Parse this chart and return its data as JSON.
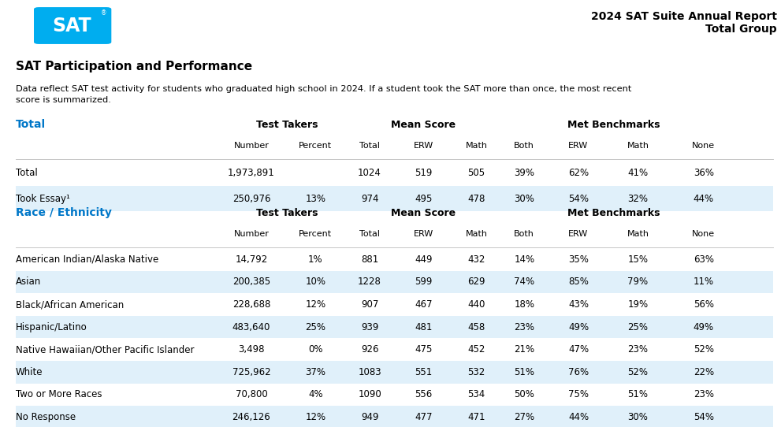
{
  "title_right": "2024 SAT Suite Annual Report\nTotal Group",
  "section_title": "SAT Participation and Performance",
  "description": "Data reflect SAT test activity for students who graduated high school in 2024. If a student took the SAT more than once, the most recent\nscore is summarized.",
  "total_section_label": "Total",
  "race_section_label": "Race / Ethnicity",
  "sub_labels": [
    "Number",
    "Percent",
    "Total",
    "ERW",
    "Math",
    "Both",
    "ERW",
    "Math",
    "None"
  ],
  "sub_keys": [
    "number",
    "percent",
    "total",
    "erw",
    "math",
    "both",
    "met_erw",
    "met_math",
    "none"
  ],
  "total_rows": [
    {
      "label": "Total",
      "number": "1,973,891",
      "percent": "",
      "total": "1024",
      "erw": "519",
      "math": "505",
      "both": "39%",
      "met_erw": "62%",
      "met_math": "41%",
      "none": "36%",
      "shaded": false
    },
    {
      "label": "Took Essay¹",
      "number": "250,976",
      "percent": "13%",
      "total": "974",
      "erw": "495",
      "math": "478",
      "both": "30%",
      "met_erw": "54%",
      "met_math": "32%",
      "none": "44%",
      "shaded": true
    }
  ],
  "race_rows": [
    {
      "label": "American Indian/Alaska Native",
      "number": "14,792",
      "percent": "1%",
      "total": "881",
      "erw": "449",
      "math": "432",
      "both": "14%",
      "met_erw": "35%",
      "met_math": "15%",
      "none": "63%",
      "shaded": false
    },
    {
      "label": "Asian",
      "number": "200,385",
      "percent": "10%",
      "total": "1228",
      "erw": "599",
      "math": "629",
      "both": "74%",
      "met_erw": "85%",
      "met_math": "79%",
      "none": "11%",
      "shaded": true
    },
    {
      "label": "Black/African American",
      "number": "228,688",
      "percent": "12%",
      "total": "907",
      "erw": "467",
      "math": "440",
      "both": "18%",
      "met_erw": "43%",
      "met_math": "19%",
      "none": "56%",
      "shaded": false
    },
    {
      "label": "Hispanic/Latino",
      "number": "483,640",
      "percent": "25%",
      "total": "939",
      "erw": "481",
      "math": "458",
      "both": "23%",
      "met_erw": "49%",
      "met_math": "25%",
      "none": "49%",
      "shaded": true
    },
    {
      "label": "Native Hawaiian/Other Pacific Islander",
      "number": "3,498",
      "percent": "0%",
      "total": "926",
      "erw": "475",
      "math": "452",
      "both": "21%",
      "met_erw": "47%",
      "met_math": "23%",
      "none": "52%",
      "shaded": false
    },
    {
      "label": "White",
      "number": "725,962",
      "percent": "37%",
      "total": "1083",
      "erw": "551",
      "math": "532",
      "both": "51%",
      "met_erw": "76%",
      "met_math": "52%",
      "none": "22%",
      "shaded": true
    },
    {
      "label": "Two or More Races",
      "number": "70,800",
      "percent": "4%",
      "total": "1090",
      "erw": "556",
      "math": "534",
      "both": "50%",
      "met_erw": "75%",
      "met_math": "51%",
      "none": "23%",
      "shaded": false
    },
    {
      "label": "No Response",
      "number": "246,126",
      "percent": "12%",
      "total": "949",
      "erw": "477",
      "math": "471",
      "both": "27%",
      "met_erw": "44%",
      "met_math": "30%",
      "none": "54%",
      "shaded": true
    }
  ],
  "col_x": {
    "label": 0.01,
    "number": 0.315,
    "percent": 0.398,
    "total": 0.468,
    "erw": 0.538,
    "math": 0.606,
    "both": 0.668,
    "met_erw": 0.738,
    "met_math": 0.815,
    "none": 0.9
  },
  "colors": {
    "section_label_blue": "#0077C8",
    "shaded_row": "#E0F0FA",
    "logo_bg": "#1A1A1A",
    "logo_blue": "#00ADEF",
    "line_color": "#BBBBBB"
  }
}
